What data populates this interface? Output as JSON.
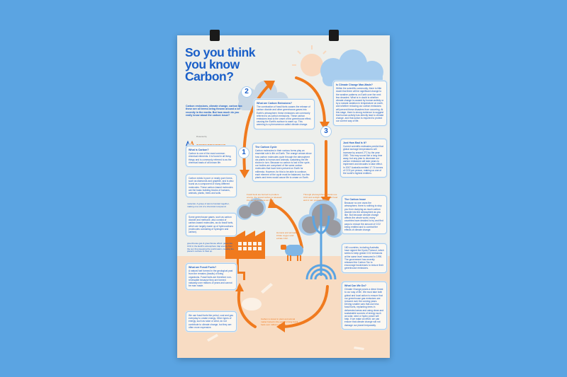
{
  "poster": {
    "title": "So you think you know Carbon?",
    "intro": "Carbon emissions, climate change, carbon tax: these are all terms being thrown around a lot recently in the media. But how much do you really know about the carbon issue?",
    "logo": {
      "presented_by": "Presented by",
      "name": "SCIENCEWORKS"
    },
    "numbers": [
      "1",
      "2",
      "3"
    ],
    "boxes": [
      {
        "heading": "What is Carbon?",
        "text": "Carbon is one of the most common chemical elements. It is found in all living things and is commonly referred to as the chemical basis of all known life."
      },
      {
        "heading": "",
        "text": "Carbon exists in pure or nearly pure forms, such as diamonds and graphite, and is also found as a component of many different molecules. These carbon-based molecules are the basic building blocks of humans, animals, plants, trees and soils."
      },
      {
        "heading": "",
        "text": "Some greenhouse gases, such as carbon dioxide and methane, also consist of carbon-based molecules, as do fossil fuels, which are largely made up of hydrocarbons (molecules consisting of hydrogen and carbon)."
      },
      {
        "heading": "What are Fossil Fuels?",
        "text": "A natural fuel formed in the geological past from the remains (fossils) of living organisms. Fossil fuels are therefore non-renewable because they are formed naturally over millions of years and cannot be man made."
      },
      {
        "heading": "",
        "text": "We use fossil fuels like petrol, coal and gas everyday to create energy. Other types of energy, such as solar or wind, do not contribute to climate change, but they are often more expensive."
      },
      {
        "heading": "What are Carbon Emissions?",
        "text": "The combustion of fossil fuels causes the release of carbon dioxide and other greenhouse gases into Earth's atmosphere; these emissions are commonly referred to as carbon emissions. These carbon emissions lead to the onset of the greenhouse effect, causing the Earth's surface to warm up. This warming is a phenomenon called climate change."
      },
      {
        "heading": "The Carbon Cycle",
        "text": "Carbon molecules in their various forms play an essential role in life on Earth. The orange arrows show how carbon molecules cycle through the atmosphere via plants to human and animals, sustaining the life shown in turn. Because no carbon is lost in the cycle, our bodies are comprised of the same carbon molecules that have been present on Earth for millennia. However, for this to be able to continue, each element of the cycle must be balanced, too few plants and trees would cause life to cease on Earth."
      },
      {
        "heading": "Is Climate Change Man-Made?",
        "text": "Within the scientific community, there is little doubt that there will be significant change to the weather patterns on Earth over the next few decades. What is in doubt is whether climate change is caused by human activity or by a natural variation in temperature on earth, and whether reducing our carbon emissions will prevent these disasters from occurring. At this stage, there is strong evidence to suggest that human activity has directly lead to climate change, and that action is required to protect our current way of life."
      },
      {
        "heading": "Just How Bad Is It?",
        "text": "Current scientific estimates predict that global average temperatures will increase by around 2°C by the year 2050. This may sound like a long time away, but any plan to decrease our carbon emissions will take years to implement and decades to take effect. In 2007 Australia emitted 17.74 tonnes of CO2 per person, making us one of the world's highest emitters."
      },
      {
        "heading": "The Carbon Issue",
        "text": "Because no one owns the atmosphere, there is nothing to stop you from dumping as much carbon dioxide into the atmosphere as you like. But because climate change affects the whole world, many countries have decided to try and find ways to reduce the amount of CO2 being emitted and to combat the effects of climate change."
      },
      {
        "heading": "",
        "text": "180 countries, including Australia, have signed the Kyoto Protocol, which seeks to keep global CO2 emissions at the same level measured in 1990. The government has recently released the Carbon Tax to encourage businesses to reduce their greenhouse emissions."
      },
      {
        "heading": "What Can We Do?",
        "text": "Climate Change poses a direct threat to our way of life. We must take both global and local action to ensure that our greenhouse gas emissions are reduced over the coming years. Driving smaller cars that use less fossil fuels, replanting trees in deforested areas and using clean and sustainable sources of energy such as solar, wind or hydro power will help. If we make an effort, we can ensure that climate change will not damage our planet irreparably."
      }
    ],
    "notes": {
      "molecules": "molecule: A group of atoms bonded together, making one unit of a chemical compound.",
      "greenhouse": "greenhouse gas & greenhouse effect: gases like CO2 in the Earth's atmosphere trap energy from the sun thus keeping the world warm, causing the planet's surface to heat up.",
      "fossil_burned": "Fossil fuels are burned to produce energy, the stored carbon is released into the atmosphere as CO2.",
      "photosynthesis": "Through photosynthesis, plants use CO2 and sunlight to make their food and in turn produce oxygen.",
      "animals": "Humans and animals inhale oxygen and exhale CO2.",
      "stored": "Carbon is stored in plant and animal matter buried in the earth forming fossil fuels over millions of years."
    }
  },
  "colors": {
    "background": "#5ba4e2",
    "brand_blue": "#1a5fc8",
    "accent_orange": "#f07a1e",
    "ground_peach": "#f8dcc3",
    "paper": "#edefec"
  }
}
